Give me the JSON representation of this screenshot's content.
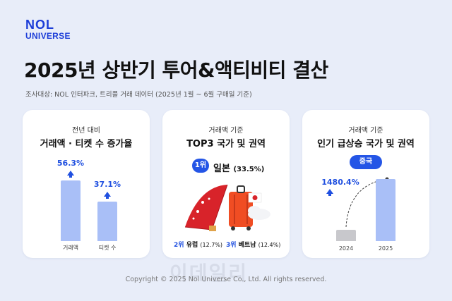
{
  "logo": {
    "line1": "NOL",
    "line2": "UNIVERSE"
  },
  "title": "2025년 상반기 투어&액티비티 결산",
  "subtitle": "조사대상: NOL 인터파크, 트리플 거래 데이터 (2025년 1월 ~ 6월 구매일 기준)",
  "card1": {
    "top": "전년 대비",
    "head": "거래액 · 티켓 수 증가율"
  },
  "card2": {
    "top": "거래액 기준",
    "head": "TOP3 국가 및 권역",
    "rank1": "1위",
    "rank1_name": "일본",
    "rank1_pct": "(33.5%)",
    "rank2": "2위",
    "rank2_name": "유럽",
    "rank2_pct": "(12.7%)",
    "rank3": "3위",
    "rank3_name": "베트남",
    "rank3_pct": "(12.4%)"
  },
  "card3": {
    "top": "거래액 기준",
    "head": "인기 급상승 국가 및 권역",
    "badge": "중국",
    "growth": "1480.4%"
  },
  "chart_data": [
    {
      "type": "bar",
      "categories": [
        "거래액",
        "티켓 수"
      ],
      "values": [
        56.3,
        37.1
      ],
      "labels": [
        "56.3%",
        "37.1%"
      ]
    },
    {
      "type": "bar",
      "categories": [
        "2024",
        "2025"
      ],
      "values": [
        1,
        15.804
      ],
      "labels": [
        "",
        "1480.4%"
      ]
    }
  ],
  "footer": "Copyright © 2025 Nol Universe Co., Ltd. All rights reserved.",
  "watermark": "이데일리"
}
